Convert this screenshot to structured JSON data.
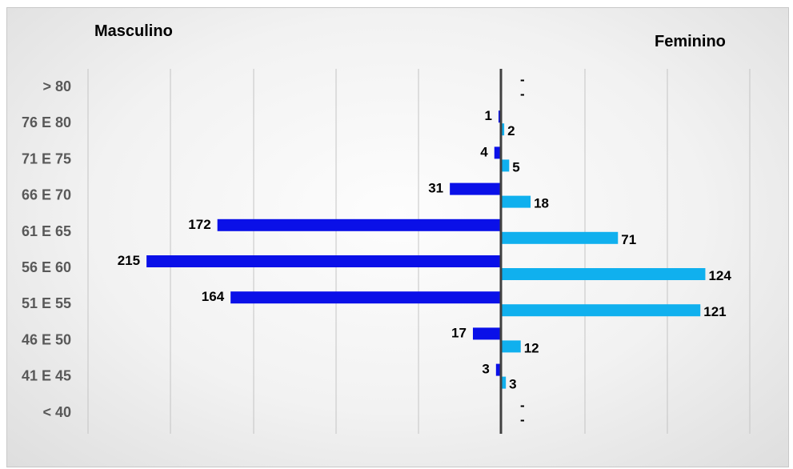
{
  "chart_data": {
    "type": "bar",
    "orientation": "horizontal",
    "layout": "population-pyramid",
    "categories": [
      "> 80",
      "76 E 80",
      "71 E 75",
      "66 E 70",
      "61 E 65",
      "56 E 60",
      "51 E 55",
      "46 E 50",
      "41 E 45",
      "< 40"
    ],
    "series": [
      {
        "name": "Masculino",
        "side": "left",
        "color": "#0a10e8",
        "values": [
          null,
          1,
          4,
          31,
          172,
          215,
          164,
          17,
          3,
          null
        ],
        "labels": [
          "-",
          "1",
          "4",
          "31",
          "172",
          "215",
          "164",
          "17",
          "3",
          "-"
        ]
      },
      {
        "name": "Feminino",
        "side": "right",
        "color": "#10b0ee",
        "values": [
          null,
          2,
          5,
          18,
          71,
          124,
          121,
          12,
          3,
          null
        ],
        "labels": [
          "-",
          "2",
          "5",
          "18",
          "71",
          "124",
          "121",
          "12",
          "3",
          "-"
        ]
      }
    ],
    "grid": true,
    "axis_color": "#404040"
  }
}
